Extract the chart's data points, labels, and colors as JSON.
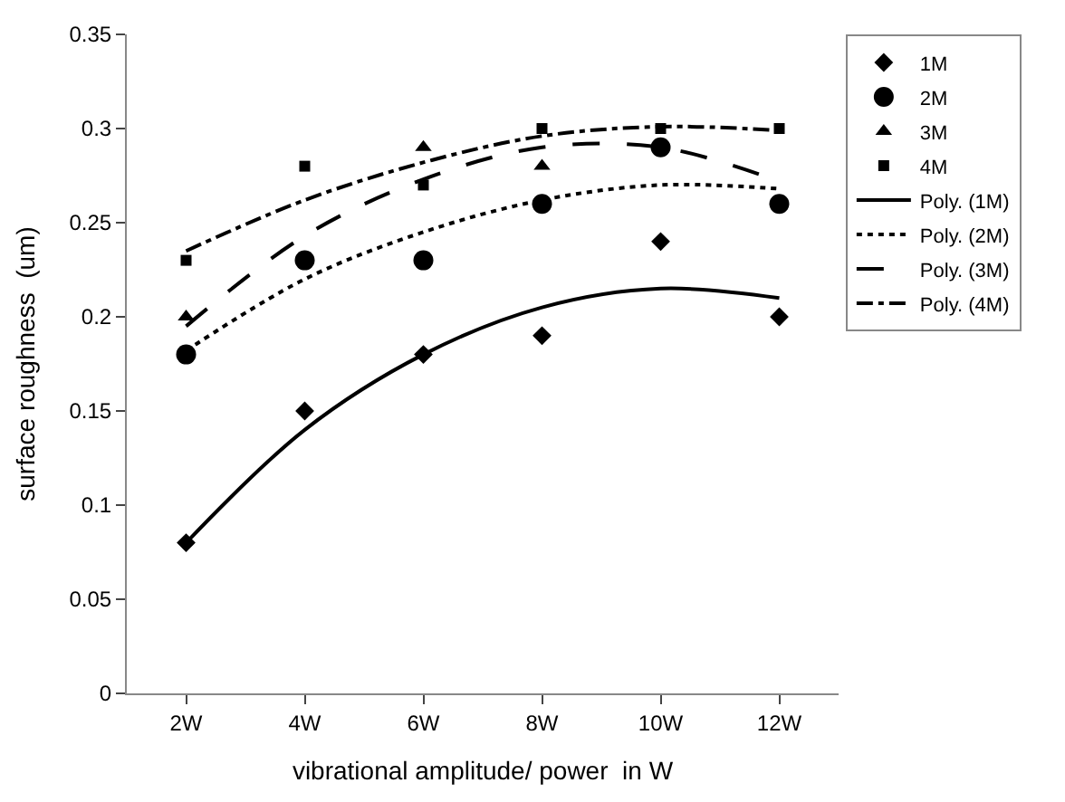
{
  "chart_data": {
    "type": "scatter",
    "xlabel": "vibrational amplitude/ power  in W",
    "ylabel": "surface roughness  (um)",
    "categories": [
      "2W",
      "4W",
      "6W",
      "8W",
      "10W",
      "12W"
    ],
    "series": [
      {
        "name": "1M",
        "marker": "diamond",
        "color": "#000000",
        "values": [
          0.08,
          0.15,
          0.18,
          0.19,
          0.24,
          0.2
        ]
      },
      {
        "name": "2M",
        "marker": "circle",
        "color": "#000000",
        "values": [
          0.18,
          0.23,
          0.23,
          0.26,
          0.29,
          0.26
        ]
      },
      {
        "name": "3M",
        "marker": "triangle",
        "color": "#000000",
        "values": [
          0.2,
          null,
          0.29,
          0.28,
          null,
          null
        ]
      },
      {
        "name": "4M",
        "marker": "square",
        "color": "#000000",
        "values": [
          0.23,
          0.28,
          0.27,
          0.3,
          0.3,
          0.3
        ]
      },
      {
        "name": "Poly. (1M)",
        "type": "line",
        "line_style": "solid",
        "color": "#000000",
        "values": [
          0.08,
          0.14,
          0.18,
          0.205,
          0.215,
          0.21
        ]
      },
      {
        "name": "Poly. (2M)",
        "type": "line",
        "line_style": "dotted",
        "color": "#000000",
        "values": [
          0.182,
          0.22,
          0.245,
          0.262,
          0.27,
          0.268
        ]
      },
      {
        "name": "Poly. (3M)",
        "type": "line",
        "line_style": "dashed",
        "color": "#000000",
        "values": [
          0.195,
          0.243,
          0.273,
          0.29,
          0.29,
          0.272
        ]
      },
      {
        "name": "Poly. (4M)",
        "type": "line",
        "line_style": "dashdot",
        "color": "#000000",
        "values": [
          0.235,
          0.262,
          0.282,
          0.296,
          0.301,
          0.299
        ]
      }
    ],
    "ylim": [
      0,
      0.35
    ],
    "yticks": [
      0,
      0.05,
      0.1,
      0.15,
      0.2,
      0.25,
      0.3,
      0.35
    ],
    "grid": false,
    "legend": "right"
  }
}
